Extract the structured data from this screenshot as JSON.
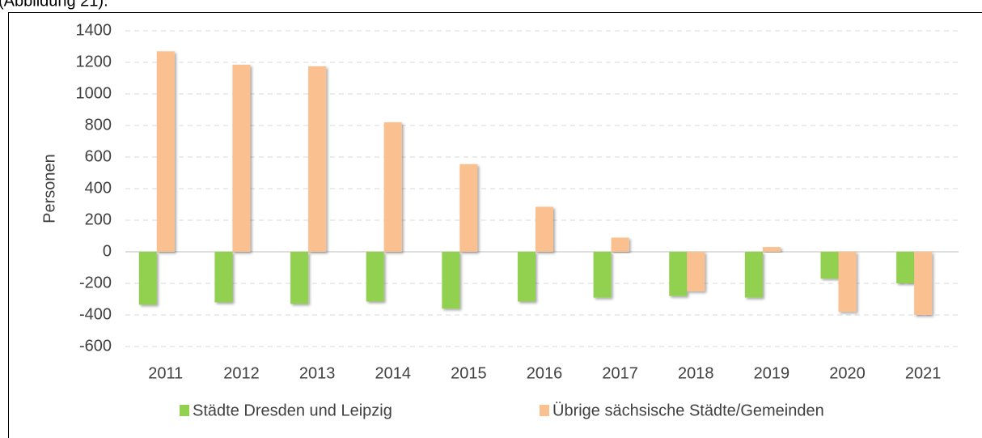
{
  "caption": "(Abbildung 21).",
  "chart_data": {
    "type": "bar",
    "ylabel": "Personen",
    "categories": [
      "2011",
      "2012",
      "2013",
      "2014",
      "2015",
      "2016",
      "2017",
      "2018",
      "2019",
      "2020",
      "2021"
    ],
    "series": [
      {
        "name": "Städte Dresden und Leipzig",
        "color": "#92d050",
        "values": [
          -335,
          -320,
          -330,
          -315,
          -360,
          -315,
          -290,
          -280,
          -290,
          -170,
          -200
        ]
      },
      {
        "name": "Übrige sächsische Städte/Gemeinden",
        "color": "#fac090",
        "values": [
          1270,
          1185,
          1175,
          820,
          555,
          285,
          90,
          -250,
          30,
          -380,
          -400
        ]
      }
    ],
    "ylim": [
      -600,
      1400
    ],
    "yticks": [
      -600,
      -400,
      -200,
      0,
      200,
      400,
      600,
      800,
      1000,
      1200,
      1400
    ],
    "grid": true,
    "legend": "bottom"
  }
}
